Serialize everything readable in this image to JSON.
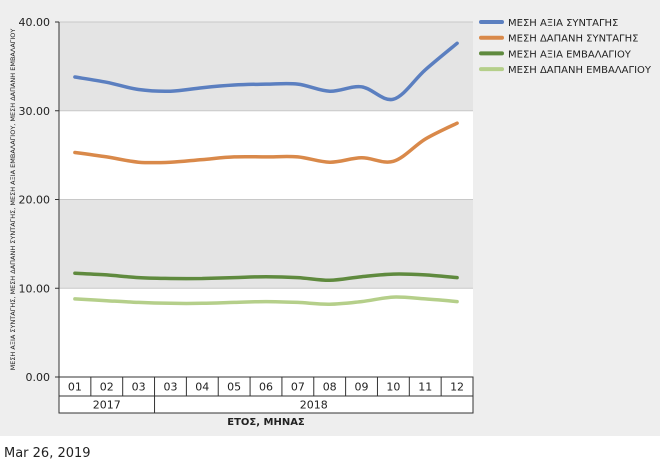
{
  "chart_data": {
    "type": "line",
    "ylabel": "ΜΕΣΗ ΑΞΙΑ ΣΥΝΤΑΓΗΣ, ΜΕΣΗ ΔΑΠΑΝΗ ΣΥΝΤΑΓΗΣ, ΜΕΣΗ ΑΞΙΑ ΕΜΒΑΛΑΓΙΟΥ, ΜΕΣΗ ΔΑΠΑΝΗ ΕΜΒΑΛΑΓΙΟΥ",
    "xlabel": "ΕΤΟΣ, ΜΗΝΑΣ",
    "ylim": [
      0,
      40
    ],
    "yticks": [
      "0.00",
      "10.00",
      "20.00",
      "30.00",
      "40.00"
    ],
    "grid": true,
    "legend_position": "right",
    "categories": [
      "01",
      "02",
      "03",
      "03",
      "04",
      "05",
      "06",
      "07",
      "08",
      "09",
      "10",
      "11",
      "12"
    ],
    "groups": [
      {
        "label": "2017",
        "count": 3
      },
      {
        "label": "2018",
        "count": 10
      }
    ],
    "series": [
      {
        "name": "ΜΕΣΗ ΑΞΙΑ ΣΥΝΤΑΓΗΣ",
        "color": "#5b7fc0",
        "values": [
          33.8,
          33.2,
          32.4,
          32.2,
          32.6,
          32.9,
          33.0,
          33.0,
          32.2,
          32.7,
          31.3,
          34.6,
          37.6
        ]
      },
      {
        "name": "ΜΕΣΗ ΔΑΠΑΝΗ ΣΥΝΤΑΓΗΣ",
        "color": "#d9894a",
        "values": [
          25.3,
          24.8,
          24.2,
          24.2,
          24.5,
          24.8,
          24.8,
          24.8,
          24.2,
          24.7,
          24.3,
          26.8,
          28.6
        ]
      },
      {
        "name": "ΜΕΣΗ ΑΞΙΑ ΕΜΒΑΛΑΓΙΟΥ",
        "color": "#5f8a3e",
        "values": [
          11.7,
          11.5,
          11.2,
          11.1,
          11.1,
          11.2,
          11.3,
          11.2,
          10.9,
          11.3,
          11.6,
          11.5,
          11.2
        ]
      },
      {
        "name": "ΜΕΣΗ ΔΑΠΑΝΗ ΕΜΒΑΛΑΓΙΟΥ",
        "color": "#b5cf8a",
        "values": [
          8.8,
          8.6,
          8.4,
          8.3,
          8.3,
          8.4,
          8.5,
          8.4,
          8.2,
          8.5,
          9.0,
          8.8,
          8.5
        ]
      }
    ]
  },
  "footer": {
    "date": "Mar 26, 2019"
  }
}
